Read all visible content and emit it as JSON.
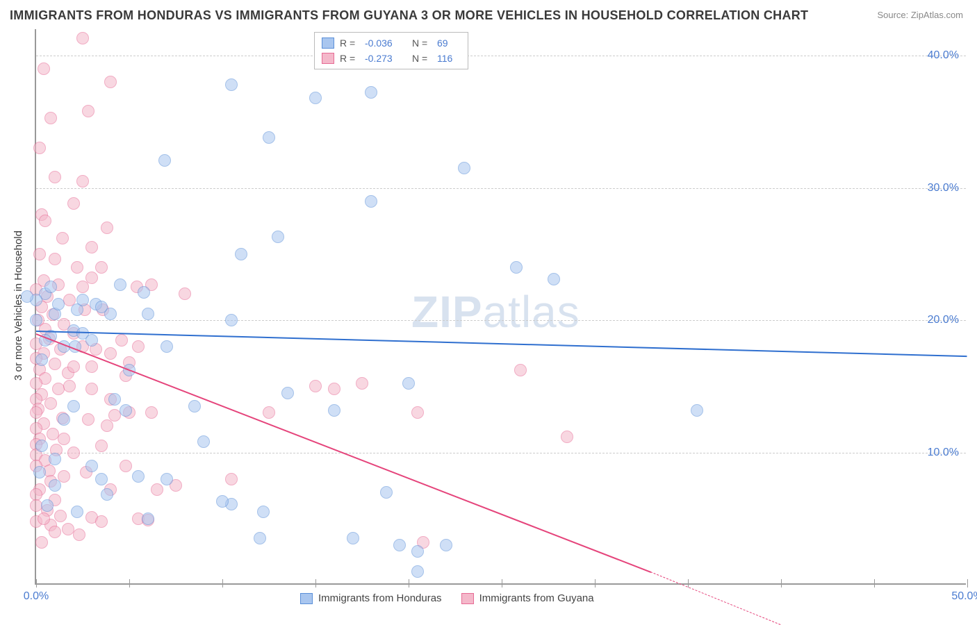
{
  "title": "IMMIGRANTS FROM HONDURAS VS IMMIGRANTS FROM GUYANA 3 OR MORE VEHICLES IN HOUSEHOLD CORRELATION CHART",
  "source": "Source: ZipAtlas.com",
  "y_axis_label": "3 or more Vehicles in Household",
  "watermark": {
    "zip": "ZIP",
    "atlas": "atlas"
  },
  "chart": {
    "type": "scatter",
    "xlim": [
      0,
      50
    ],
    "ylim": [
      0,
      42
    ],
    "x_ticks": [
      0,
      5,
      10,
      15,
      20,
      25,
      30,
      35,
      40,
      45,
      50
    ],
    "x_tick_labels": {
      "0": "0.0%",
      "50": "50.0%"
    },
    "y_ticks": [
      10,
      20,
      30,
      40
    ],
    "y_tick_labels": [
      "10.0%",
      "20.0%",
      "30.0%",
      "40.0%"
    ],
    "background_color": "#ffffff",
    "grid_color": "#cccccc",
    "axis_color": "#999999",
    "marker_radius": 9,
    "marker_opacity": 0.55,
    "series": [
      {
        "name": "Immigrants from Honduras",
        "color_fill": "#a9c6ef",
        "color_stroke": "#5a8fd8",
        "R": "-0.036",
        "N": "69",
        "trend": {
          "x1": 0,
          "y1": 19.2,
          "x2": 50,
          "y2": 17.3,
          "color": "#2f6fcf"
        },
        "points": [
          [
            2.2,
            20.8
          ],
          [
            2.0,
            19.2
          ],
          [
            1.0,
            20.5
          ],
          [
            0.5,
            22.0
          ],
          [
            1.2,
            21.2
          ],
          [
            0.0,
            21.5
          ],
          [
            3.2,
            21.2
          ],
          [
            2.5,
            19.0
          ],
          [
            1.5,
            18.0
          ],
          [
            0.8,
            18.8
          ],
          [
            4.5,
            22.7
          ],
          [
            5.8,
            22.1
          ],
          [
            5.0,
            16.2
          ],
          [
            3.0,
            18.5
          ],
          [
            6.9,
            32.1
          ],
          [
            10.5,
            37.8
          ],
          [
            11.0,
            25.0
          ],
          [
            10.5,
            20.0
          ],
          [
            12.5,
            33.8
          ],
          [
            13.0,
            26.3
          ],
          [
            13.5,
            14.5
          ],
          [
            15.0,
            36.8
          ],
          [
            16.0,
            13.2
          ],
          [
            18.0,
            29.0
          ],
          [
            18.0,
            37.2
          ],
          [
            18.8,
            7.0
          ],
          [
            20.0,
            15.2
          ],
          [
            20.5,
            1.0
          ],
          [
            23.0,
            31.5
          ],
          [
            25.8,
            24.0
          ],
          [
            27.8,
            23.1
          ],
          [
            35.5,
            13.2
          ],
          [
            20.5,
            2.5
          ],
          [
            22.0,
            3.0
          ],
          [
            19.5,
            3.0
          ],
          [
            17.0,
            3.5
          ],
          [
            12.2,
            5.5
          ],
          [
            10.5,
            6.1
          ],
          [
            10.0,
            6.3
          ],
          [
            9.0,
            10.8
          ],
          [
            8.5,
            13.5
          ],
          [
            7.0,
            8.0
          ],
          [
            6.0,
            5.0
          ],
          [
            3.5,
            8.0
          ],
          [
            3.0,
            9.0
          ],
          [
            1.5,
            12.5
          ],
          [
            2.0,
            13.5
          ],
          [
            0.3,
            17.0
          ],
          [
            0.5,
            18.5
          ],
          [
            2.1,
            18.0
          ],
          [
            0.3,
            10.5
          ],
          [
            1.0,
            9.5
          ],
          [
            0.0,
            20.0
          ],
          [
            0.8,
            22.5
          ],
          [
            5.5,
            8.2
          ],
          [
            4.8,
            13.2
          ],
          [
            4.0,
            20.5
          ],
          [
            3.5,
            21.0
          ],
          [
            6.0,
            20.5
          ],
          [
            7.0,
            18.0
          ],
          [
            4.2,
            14.0
          ],
          [
            1.0,
            7.5
          ],
          [
            2.2,
            5.5
          ],
          [
            0.6,
            6.0
          ],
          [
            3.8,
            6.8
          ],
          [
            2.5,
            21.5
          ],
          [
            0.2,
            8.5
          ],
          [
            -0.5,
            21.8
          ],
          [
            12.0,
            3.5
          ]
        ]
      },
      {
        "name": "Immigrants from Guyana",
        "color_fill": "#f4b8ca",
        "color_stroke": "#e76a94",
        "R": "-0.273",
        "N": "116",
        "trend": {
          "x1": 0,
          "y1": 19.0,
          "x2": 33,
          "y2": 1.0,
          "x3": 40,
          "y3": -3.0,
          "color": "#e5447b"
        },
        "points": [
          [
            2.5,
            41.3
          ],
          [
            0.4,
            39.0
          ],
          [
            0.8,
            35.3
          ],
          [
            2.8,
            35.8
          ],
          [
            0.2,
            33.0
          ],
          [
            1.0,
            30.8
          ],
          [
            2.0,
            28.8
          ],
          [
            0.3,
            28.0
          ],
          [
            0.5,
            27.5
          ],
          [
            1.4,
            26.2
          ],
          [
            0.2,
            25.0
          ],
          [
            1.0,
            24.6
          ],
          [
            2.2,
            24.0
          ],
          [
            0.4,
            23.0
          ],
          [
            1.2,
            22.7
          ],
          [
            0.0,
            22.3
          ],
          [
            0.6,
            21.8
          ],
          [
            1.8,
            21.5
          ],
          [
            0.3,
            21.0
          ],
          [
            2.6,
            20.8
          ],
          [
            0.9,
            20.4
          ],
          [
            0.1,
            20.0
          ],
          [
            1.5,
            19.7
          ],
          [
            0.5,
            19.3
          ],
          [
            2.0,
            19.0
          ],
          [
            0.7,
            18.6
          ],
          [
            0.0,
            18.2
          ],
          [
            1.3,
            17.8
          ],
          [
            0.4,
            17.5
          ],
          [
            0.0,
            17.1
          ],
          [
            1.0,
            16.7
          ],
          [
            0.2,
            16.3
          ],
          [
            1.7,
            16.0
          ],
          [
            0.5,
            15.6
          ],
          [
            0.0,
            15.2
          ],
          [
            1.2,
            14.8
          ],
          [
            0.3,
            14.4
          ],
          [
            0.0,
            14.0
          ],
          [
            0.8,
            13.7
          ],
          [
            0.1,
            13.3
          ],
          [
            0.0,
            13.0
          ],
          [
            1.4,
            12.6
          ],
          [
            0.4,
            12.2
          ],
          [
            0.0,
            11.8
          ],
          [
            0.9,
            11.4
          ],
          [
            0.2,
            11.0
          ],
          [
            0.0,
            10.6
          ],
          [
            1.1,
            10.2
          ],
          [
            0.0,
            9.8
          ],
          [
            0.5,
            9.4
          ],
          [
            0.0,
            9.0
          ],
          [
            0.7,
            8.6
          ],
          [
            1.5,
            8.2
          ],
          [
            0.2,
            7.2
          ],
          [
            0.0,
            6.8
          ],
          [
            1.0,
            6.4
          ],
          [
            0.0,
            6.0
          ],
          [
            0.6,
            5.6
          ],
          [
            1.3,
            5.2
          ],
          [
            0.0,
            4.8
          ],
          [
            0.8,
            4.5
          ],
          [
            1.7,
            4.2
          ],
          [
            2.3,
            3.8
          ],
          [
            0.3,
            3.2
          ],
          [
            3.0,
            5.1
          ],
          [
            3.5,
            4.8
          ],
          [
            4.6,
            18.5
          ],
          [
            5.4,
            22.5
          ],
          [
            6.2,
            22.7
          ],
          [
            4.0,
            7.2
          ],
          [
            5.5,
            5.0
          ],
          [
            6.0,
            4.9
          ],
          [
            6.5,
            7.2
          ],
          [
            7.5,
            7.5
          ],
          [
            8.0,
            22.0
          ],
          [
            3.6,
            20.8
          ],
          [
            3.0,
            23.2
          ],
          [
            4.0,
            14.0
          ],
          [
            4.8,
            15.8
          ],
          [
            5.0,
            13.0
          ],
          [
            3.0,
            16.5
          ],
          [
            4.0,
            17.5
          ],
          [
            2.8,
            12.5
          ],
          [
            3.5,
            10.5
          ],
          [
            3.2,
            17.8
          ],
          [
            4.2,
            12.8
          ],
          [
            5.0,
            16.8
          ],
          [
            6.2,
            13.0
          ],
          [
            10.5,
            8.0
          ],
          [
            12.5,
            13.0
          ],
          [
            15.0,
            15.0
          ],
          [
            16.0,
            14.8
          ],
          [
            17.5,
            15.2
          ],
          [
            20.5,
            13.0
          ],
          [
            20.8,
            3.2
          ],
          [
            26.0,
            16.2
          ],
          [
            28.5,
            11.2
          ],
          [
            4.0,
            38.0
          ],
          [
            2.5,
            30.5
          ],
          [
            3.8,
            27.0
          ],
          [
            3.0,
            25.5
          ],
          [
            2.5,
            22.5
          ],
          [
            3.5,
            24.0
          ],
          [
            1.8,
            15.0
          ],
          [
            1.0,
            4.0
          ],
          [
            2.5,
            18.0
          ],
          [
            3.8,
            12.0
          ],
          [
            2.0,
            10.0
          ],
          [
            4.8,
            9.0
          ],
          [
            2.7,
            8.5
          ],
          [
            5.5,
            18.0
          ],
          [
            3.0,
            14.8
          ],
          [
            2.0,
            16.5
          ],
          [
            1.5,
            11.0
          ],
          [
            0.8,
            7.8
          ],
          [
            0.4,
            5.0
          ]
        ]
      }
    ]
  },
  "legend_bottom": [
    {
      "label": "Immigrants from Honduras",
      "fill": "#a9c6ef",
      "stroke": "#5a8fd8"
    },
    {
      "label": "Immigrants from Guyana",
      "fill": "#f4b8ca",
      "stroke": "#e76a94"
    }
  ]
}
